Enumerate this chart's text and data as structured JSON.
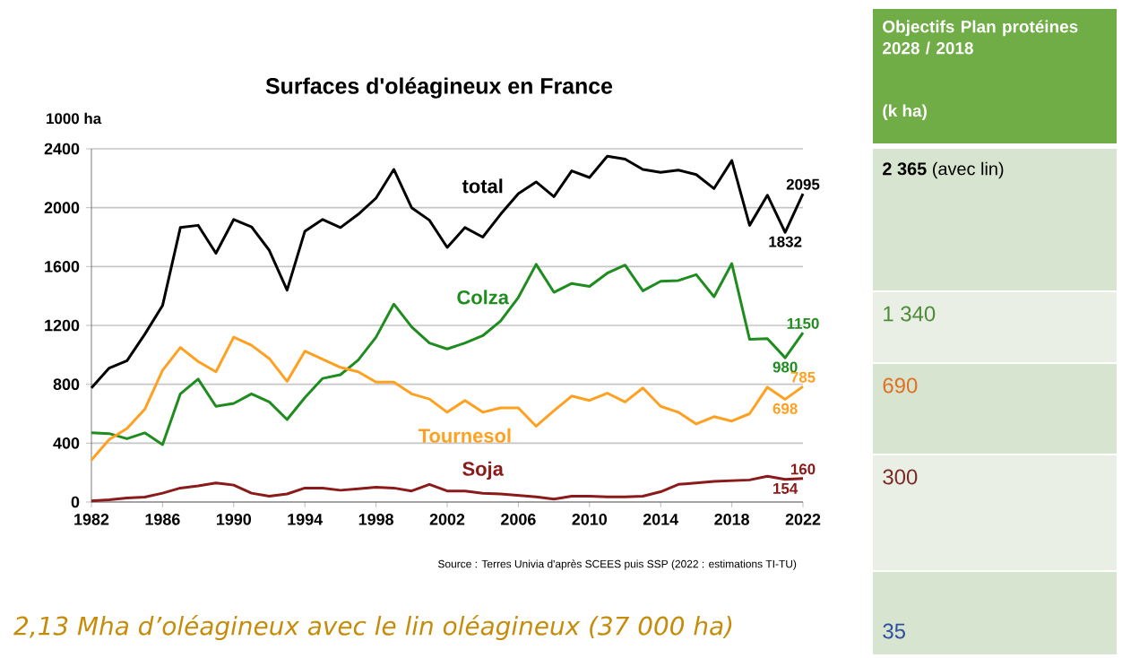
{
  "chart_data": {
    "type": "line",
    "title": "Surfaces d'oléagineux en France",
    "ylabel": "1000 ha",
    "x": [
      1982,
      1983,
      1984,
      1985,
      1986,
      1987,
      1988,
      1989,
      1990,
      1991,
      1992,
      1993,
      1994,
      1995,
      1996,
      1997,
      1998,
      1999,
      2000,
      2001,
      2002,
      2003,
      2004,
      2005,
      2006,
      2007,
      2008,
      2009,
      2010,
      2011,
      2012,
      2013,
      2014,
      2015,
      2016,
      2017,
      2018,
      2019,
      2020,
      2021,
      2022
    ],
    "series": [
      {
        "name": "total",
        "color": "#000000",
        "values": [
          775,
          910,
          960,
          1140,
          1335,
          1865,
          1880,
          1690,
          1920,
          1870,
          1710,
          1440,
          1840,
          1920,
          1865,
          1955,
          2065,
          2260,
          2000,
          1915,
          1730,
          1865,
          1800,
          1955,
          2095,
          2175,
          2075,
          2250,
          2205,
          2350,
          2330,
          2260,
          2240,
          2255,
          2225,
          2130,
          2320,
          1880,
          2085,
          1832,
          2095
        ],
        "value_labels": [
          null,
          null,
          null,
          null,
          null,
          null,
          null,
          null,
          null,
          null,
          null,
          null,
          null,
          null,
          null,
          null,
          null,
          null,
          null,
          null,
          null,
          null,
          null,
          null,
          null,
          null,
          null,
          null,
          null,
          null,
          null,
          null,
          null,
          null,
          null,
          null,
          null,
          null,
          null,
          "1832",
          "2095"
        ]
      },
      {
        "name": "Colza",
        "color": "#1f8c1f",
        "values": [
          470,
          465,
          430,
          470,
          390,
          735,
          835,
          650,
          670,
          735,
          680,
          560,
          710,
          840,
          865,
          965,
          1120,
          1345,
          1190,
          1080,
          1040,
          1080,
          1130,
          1230,
          1390,
          1615,
          1425,
          1485,
          1465,
          1555,
          1610,
          1435,
          1500,
          1505,
          1545,
          1395,
          1620,
          1105,
          1110,
          980,
          1150
        ],
        "value_labels": [
          null,
          null,
          null,
          null,
          null,
          null,
          null,
          null,
          null,
          null,
          null,
          null,
          null,
          null,
          null,
          null,
          null,
          null,
          null,
          null,
          null,
          null,
          null,
          null,
          null,
          null,
          null,
          null,
          null,
          null,
          null,
          null,
          null,
          null,
          null,
          null,
          null,
          null,
          null,
          "980",
          "1150"
        ]
      },
      {
        "name": "Tournesol",
        "color": "#ffa020",
        "values": [
          285,
          425,
          500,
          630,
          895,
          1050,
          955,
          885,
          1120,
          1065,
          975,
          820,
          1025,
          970,
          915,
          885,
          815,
          815,
          735,
          700,
          610,
          690,
          610,
          640,
          640,
          515,
          620,
          720,
          690,
          740,
          680,
          775,
          650,
          610,
          530,
          580,
          550,
          600,
          780,
          698,
          785
        ],
        "value_labels": [
          null,
          null,
          null,
          null,
          null,
          null,
          null,
          null,
          null,
          null,
          null,
          null,
          null,
          null,
          null,
          null,
          null,
          null,
          null,
          null,
          null,
          null,
          null,
          null,
          null,
          null,
          null,
          null,
          null,
          null,
          null,
          null,
          null,
          null,
          null,
          null,
          null,
          null,
          null,
          "698",
          "785"
        ]
      },
      {
        "name": "Soja",
        "color": "#8b1a1a",
        "values": [
          8,
          15,
          28,
          33,
          60,
          95,
          110,
          130,
          115,
          60,
          40,
          55,
          95,
          95,
          80,
          90,
          100,
          95,
          75,
          120,
          75,
          75,
          60,
          55,
          45,
          35,
          20,
          40,
          40,
          35,
          35,
          40,
          70,
          120,
          130,
          140,
          145,
          150,
          175,
          154,
          160
        ],
        "value_labels": [
          null,
          null,
          null,
          null,
          null,
          null,
          null,
          null,
          null,
          null,
          null,
          null,
          null,
          null,
          null,
          null,
          null,
          null,
          null,
          null,
          null,
          null,
          null,
          null,
          null,
          null,
          null,
          null,
          null,
          null,
          null,
          null,
          null,
          null,
          null,
          null,
          null,
          null,
          null,
          "154",
          "160"
        ]
      }
    ],
    "xlim": [
      1982,
      2022
    ],
    "xticks": [
      1982,
      1986,
      1990,
      1994,
      1998,
      2002,
      2006,
      2010,
      2014,
      2018,
      2022
    ],
    "ylim": [
      0,
      2400
    ],
    "yticks": [
      0,
      400,
      800,
      1200,
      1600,
      2000,
      2400
    ],
    "grid": "y",
    "annotations": [
      "Source : Terres Univia d'après SCEES puis SSP (2022 : estimations TI-TU)",
      "2,13 Mha d’oléagineux  avec le lin oléagineux (37 000 ha)",
      "Objectifs Plan protéines 2028 / 2018",
      "(k ha)",
      "**2 365** (avec lin)",
      "1 340",
      "690",
      "300",
      "35"
    ]
  }
}
